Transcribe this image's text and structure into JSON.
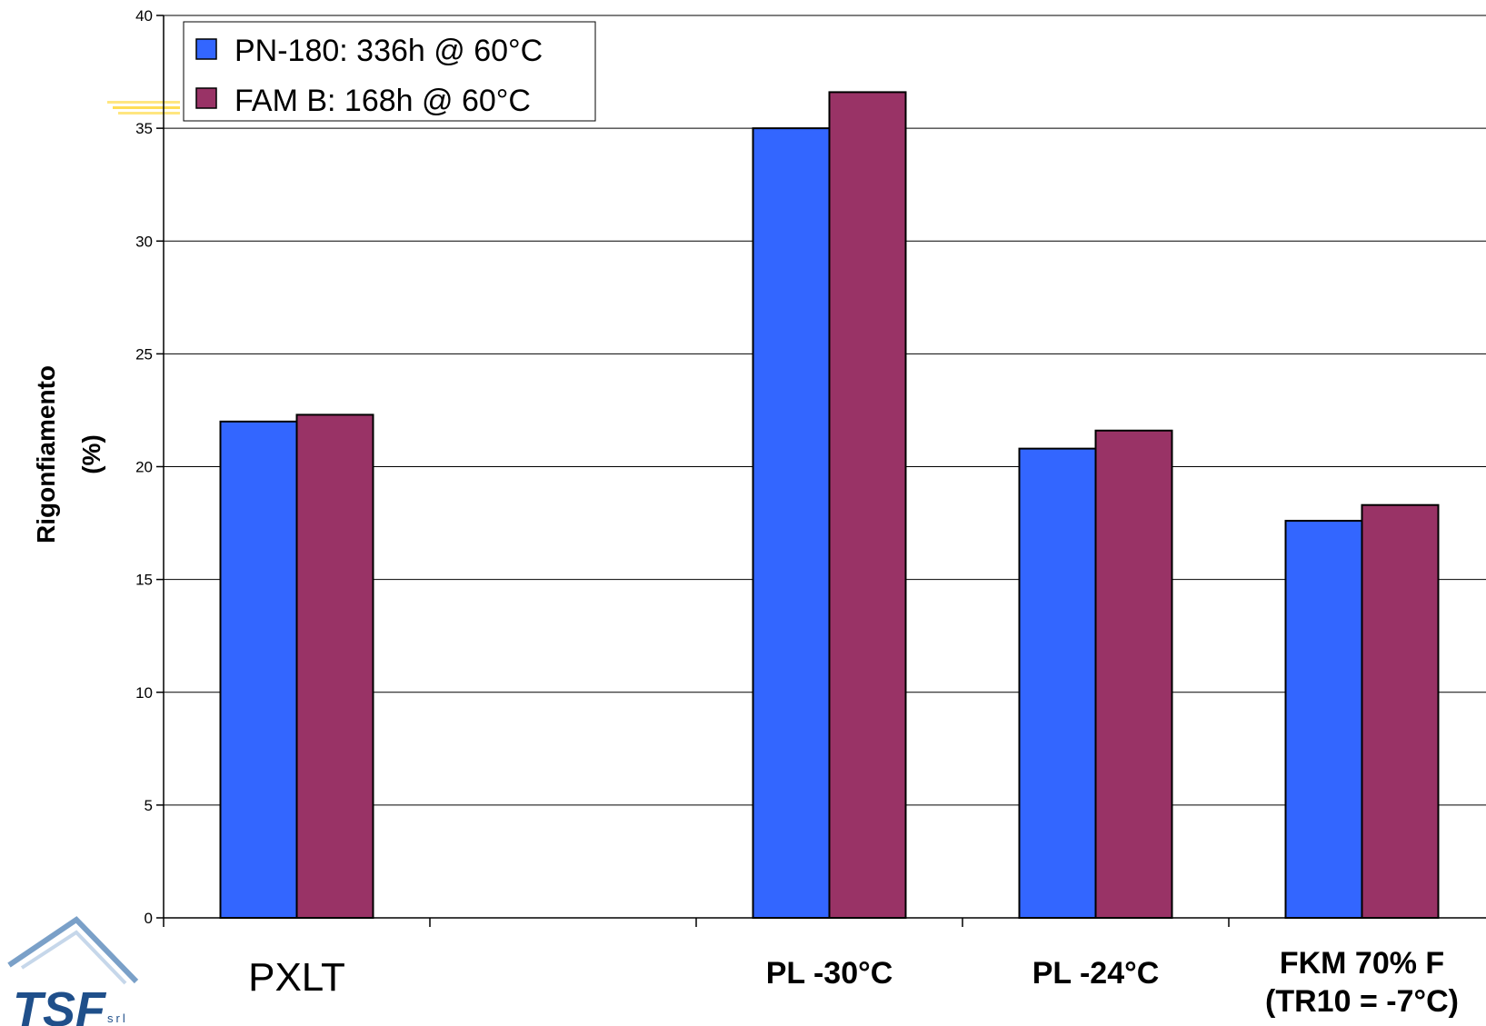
{
  "chart_data": {
    "type": "bar",
    "categories": [
      "PXLT",
      "",
      "PL -30°C",
      "PL -24°C",
      "FKM 70% F\n(TR10 = -7°C)"
    ],
    "category_bold": [
      false,
      false,
      true,
      true,
      true
    ],
    "series": [
      {
        "name": "PN-180: 336h @ 60°C",
        "color": "#3366ff",
        "values": [
          22.0,
          null,
          35.0,
          20.8,
          17.6
        ]
      },
      {
        "name": "FAM B: 168h @ 60°C",
        "color": "#993366",
        "values": [
          22.3,
          null,
          36.6,
          21.6,
          18.3
        ]
      }
    ],
    "title": "",
    "xlabel": "",
    "ylabel": "Rigonfiamento\n(%)",
    "ylim": [
      0,
      40
    ],
    "yticks": [
      0,
      5,
      10,
      15,
      20,
      25,
      30,
      35,
      40
    ],
    "grid": true,
    "legend": "top-left"
  },
  "logo": {
    "text": "TSF",
    "suffix": "srl"
  }
}
